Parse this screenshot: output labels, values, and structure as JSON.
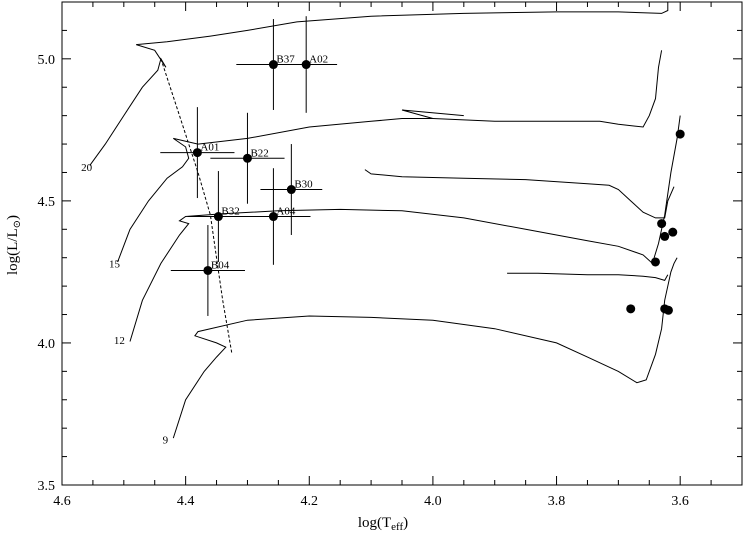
{
  "chart_data": {
    "type": "scatter",
    "xlabel_main": "log(T",
    "xlabel_sub": "eff",
    "xlabel_end": ")",
    "ylabel_main": "log(L/L",
    "ylabel_sub": "⊙",
    "ylabel_end": ")",
    "xlim": [
      4.6,
      3.5
    ],
    "ylim": [
      3.5,
      5.2
    ],
    "x_ticks": [
      {
        "v": 4.6,
        "label": "4.6"
      },
      {
        "v": 4.4,
        "label": "4.4"
      },
      {
        "v": 4.2,
        "label": "4.2"
      },
      {
        "v": 4.0,
        "label": "4.0"
      },
      {
        "v": 3.8,
        "label": "3.8"
      },
      {
        "v": 3.6,
        "label": "3.6"
      }
    ],
    "y_ticks": [
      {
        "v": 3.5,
        "label": "3.5"
      },
      {
        "v": 4.0,
        "label": "4.0"
      },
      {
        "v": 4.5,
        "label": "4.5"
      },
      {
        "v": 5.0,
        "label": "5.0"
      }
    ],
    "stars": [
      {
        "label": "B37",
        "x": 4.258,
        "y": 4.98,
        "xerr": 0.06,
        "yerr": 0.16
      },
      {
        "label": "A02",
        "x": 4.205,
        "y": 4.98,
        "xerr": 0.05,
        "yerr": 0.17
      },
      {
        "label": "A01",
        "x": 4.381,
        "y": 4.67,
        "xerr": 0.06,
        "yerr": 0.16
      },
      {
        "label": "B22",
        "x": 4.3,
        "y": 4.65,
        "xerr": 0.06,
        "yerr": 0.16
      },
      {
        "label": "B30",
        "x": 4.229,
        "y": 4.54,
        "xerr": 0.05,
        "yerr": 0.16
      },
      {
        "label": "B32",
        "x": 4.347,
        "y": 4.445,
        "xerr": 0.05,
        "yerr": 0.16
      },
      {
        "label": "A04",
        "x": 4.258,
        "y": 4.445,
        "xerr": 0.06,
        "yerr": 0.17
      },
      {
        "label": "B04",
        "x": 4.364,
        "y": 4.255,
        "xerr": 0.06,
        "yerr": 0.16
      }
    ],
    "red_supergiants": [
      {
        "x": 3.68,
        "y": 4.12
      },
      {
        "x": 3.64,
        "y": 4.285
      },
      {
        "x": 3.63,
        "y": 4.42
      },
      {
        "x": 3.625,
        "y": 4.375
      },
      {
        "x": 3.612,
        "y": 4.39
      },
      {
        "x": 3.6,
        "y": 4.735
      },
      {
        "x": 3.625,
        "y": 4.12
      },
      {
        "x": 3.619,
        "y": 4.115
      }
    ],
    "tracks": [
      {
        "label": "20",
        "label_at": [
          4.548,
          4.62
        ],
        "points": [
          [
            4.555,
            4.625
          ],
          [
            4.53,
            4.7
          ],
          [
            4.5,
            4.8
          ],
          [
            4.47,
            4.9
          ],
          [
            4.445,
            4.96
          ],
          [
            4.44,
            5.0
          ],
          [
            4.432,
            4.97
          ],
          [
            4.45,
            5.03
          ],
          [
            4.48,
            5.05
          ],
          [
            4.43,
            5.06
          ],
          [
            4.36,
            5.08
          ],
          [
            4.3,
            5.1
          ],
          [
            4.22,
            5.13
          ],
          [
            4.1,
            5.15
          ],
          [
            3.95,
            5.16
          ],
          [
            3.8,
            5.165
          ],
          [
            3.7,
            5.165
          ],
          [
            3.63,
            5.16
          ],
          [
            3.62,
            5.17
          ],
          [
            3.62,
            5.2
          ]
        ]
      },
      {
        "label": "15",
        "label_at": [
          4.503,
          4.28
        ],
        "points": [
          [
            4.51,
            4.285
          ],
          [
            4.49,
            4.4
          ],
          [
            4.46,
            4.5
          ],
          [
            4.43,
            4.58
          ],
          [
            4.405,
            4.62
          ],
          [
            4.395,
            4.65
          ],
          [
            4.4,
            4.69
          ],
          [
            4.42,
            4.72
          ],
          [
            4.38,
            4.7
          ],
          [
            4.3,
            4.72
          ],
          [
            4.2,
            4.76
          ],
          [
            4.1,
            4.78
          ],
          [
            4.05,
            4.79
          ],
          [
            4.0,
            4.79
          ],
          [
            3.9,
            4.78
          ],
          [
            3.8,
            4.78
          ],
          [
            3.73,
            4.78
          ],
          [
            3.7,
            4.77
          ],
          [
            3.66,
            4.76
          ],
          [
            3.65,
            4.8
          ],
          [
            3.64,
            4.86
          ],
          [
            3.635,
            4.97
          ],
          [
            3.63,
            5.03
          ]
        ]
      },
      {
        "label": "12",
        "label_at": [
          4.495,
          4.01
        ],
        "points": [
          [
            4.49,
            4.005
          ],
          [
            4.47,
            4.15
          ],
          [
            4.44,
            4.28
          ],
          [
            4.41,
            4.38
          ],
          [
            4.395,
            4.42
          ],
          [
            4.41,
            4.43
          ],
          [
            4.4,
            4.445
          ],
          [
            4.34,
            4.455
          ],
          [
            4.25,
            4.465
          ],
          [
            4.15,
            4.47
          ],
          [
            4.05,
            4.465
          ],
          [
            3.95,
            4.44
          ],
          [
            3.85,
            4.4
          ],
          [
            3.75,
            4.36
          ],
          [
            3.7,
            4.34
          ],
          [
            3.66,
            4.31
          ],
          [
            3.645,
            4.28
          ],
          [
            3.635,
            4.35
          ],
          [
            3.625,
            4.45
          ],
          [
            3.615,
            4.6
          ],
          [
            3.605,
            4.72
          ],
          [
            3.6,
            4.8
          ]
        ]
      },
      {
        "label": "9",
        "label_at": [
          4.425,
          3.66
        ],
        "points": [
          [
            4.42,
            3.665
          ],
          [
            4.4,
            3.8
          ],
          [
            4.37,
            3.9
          ],
          [
            4.35,
            3.95
          ],
          [
            4.335,
            3.985
          ],
          [
            4.35,
            4.0
          ],
          [
            4.385,
            4.025
          ],
          [
            4.38,
            4.04
          ],
          [
            4.3,
            4.08
          ],
          [
            4.2,
            4.095
          ],
          [
            4.1,
            4.09
          ],
          [
            4.0,
            4.08
          ],
          [
            3.9,
            4.05
          ],
          [
            3.8,
            4.0
          ],
          [
            3.75,
            3.95
          ],
          [
            3.7,
            3.9
          ],
          [
            3.67,
            3.86
          ],
          [
            3.655,
            3.87
          ],
          [
            3.64,
            3.96
          ],
          [
            3.63,
            4.05
          ],
          [
            3.625,
            4.15
          ],
          [
            3.615,
            4.25
          ],
          [
            3.61,
            4.28
          ],
          [
            3.605,
            4.3
          ]
        ]
      }
    ],
    "loops": [
      {
        "points": [
          [
            4.11,
            4.61
          ],
          [
            4.1,
            4.595
          ],
          [
            4.05,
            4.585
          ],
          [
            3.95,
            4.58
          ],
          [
            3.85,
            4.575
          ],
          [
            3.75,
            4.56
          ],
          [
            3.715,
            4.555
          ],
          [
            3.7,
            4.54
          ],
          [
            3.68,
            4.5
          ],
          [
            3.66,
            4.46
          ],
          [
            3.64,
            4.44
          ],
          [
            3.625,
            4.44
          ],
          [
            3.62,
            4.5
          ],
          [
            3.61,
            4.55
          ]
        ]
      },
      {
        "points": [
          [
            3.88,
            4.245
          ],
          [
            3.83,
            4.245
          ],
          [
            3.75,
            4.24
          ],
          [
            3.7,
            4.24
          ],
          [
            3.66,
            4.235
          ],
          [
            3.64,
            4.23
          ],
          [
            3.625,
            4.22
          ],
          [
            3.62,
            4.24
          ]
        ]
      }
    ],
    "blue_loop_extra": [
      {
        "points": [
          [
            4.0,
            4.79
          ],
          [
            4.05,
            4.82
          ],
          [
            3.95,
            4.8
          ]
        ]
      }
    ],
    "dashed_line": [
      [
        4.44,
        5.0
      ],
      [
        4.41,
        4.8
      ],
      [
        4.38,
        4.6
      ],
      [
        4.36,
        4.45
      ],
      [
        4.35,
        4.3
      ],
      [
        4.34,
        4.15
      ],
      [
        4.325,
        3.96
      ]
    ]
  }
}
